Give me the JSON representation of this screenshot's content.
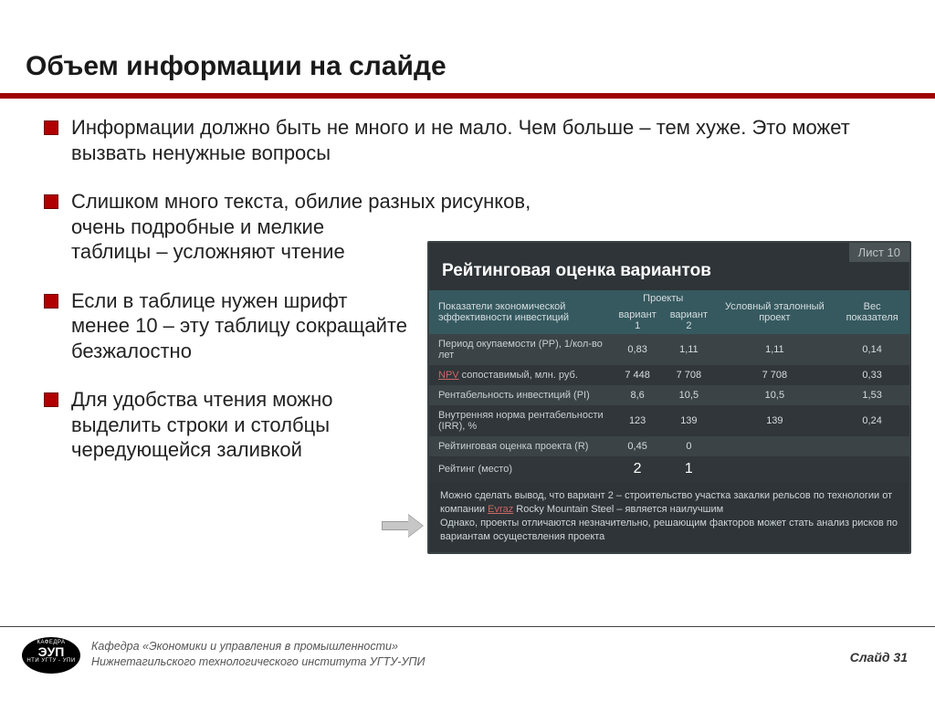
{
  "title": "Объем информации на слайде",
  "accent_color": "#a00000",
  "bullets": {
    "b1": "Информации должно быть не много и не мало. Чем больше – тем хуже. Это может вызвать ненужные вопросы",
    "b2_first": "Слишком много текста, обилие разных рисунков,",
    "b2_rest": "очень подробные и мелкие таблицы – усложняют чтение",
    "b3": "Если в таблице нужен шрифт менее 10 – эту таблицу сокращайте безжалостно",
    "b4": "Для удобства чтения можно выделить строки и столбцы чередующейся заливкой"
  },
  "embed": {
    "sheet_label": "Лист 10",
    "title": "Рейтинговая оценка вариантов",
    "bg_color": "#2e3437",
    "header_bg": "#35595f",
    "row_odd_bg": "#3b4347",
    "row_even_bg": "#303639",
    "text_color": "#d6dde0",
    "col_first": "Показатели экономической эффективности инвестиций",
    "col_projects": "Проекты",
    "col_v1": "вариант 1",
    "col_v2": "вариант 2",
    "col_ref": "Условный эталонный проект",
    "col_weight": "Вес показателя",
    "rows": [
      {
        "label": "Период окупаемости (PP), 1/кол-во лет",
        "v1": "0,83",
        "v2": "1,11",
        "ref": "1,11",
        "w": "0,14"
      },
      {
        "label_html": "NPV",
        "label_tail": " сопоставимый, млн. руб.",
        "v1": "7 448",
        "v2": "7 708",
        "ref": "7 708",
        "w": "0,33"
      },
      {
        "label": "Рентабельность инвестиций (PI)",
        "v1": "8,6",
        "v2": "10,5",
        "ref": "10,5",
        "w": "1,53"
      },
      {
        "label": "Внутренняя норма рентабельности (IRR), %",
        "v1": "123",
        "v2": "139",
        "ref": "139",
        "w": "0,24"
      },
      {
        "label": "Рейтинговая оценка проекта (R)",
        "v1": "0,45",
        "v2": "0",
        "ref": "",
        "w": ""
      },
      {
        "label": "Рейтинг (место)",
        "v1": "2",
        "v2": "1",
        "ref": "",
        "w": ""
      }
    ],
    "footer_1a": "Можно сделать вывод, что вариант 2 – строительство участка закалки рельсов по технологии от компании ",
    "footer_1link": "Evraz",
    "footer_1b": " Rocky Mountain Steel – является наилучшим",
    "footer_2": "Однако, проекты отличаются незначительно, решающим факторов может стать анализ рисков по вариантам осуществления проекта"
  },
  "footer": {
    "dept_line1": "Кафедра «Экономики и управления в промышленности»",
    "dept_line2": "Нижнетагильского технологического института УГТУ-УПИ",
    "logo_top": "КАФЕДРА",
    "logo_mid": "ЭУП",
    "logo_bot": "НТИ УГТУ - УПИ",
    "slide_label": "Слайд 31"
  }
}
